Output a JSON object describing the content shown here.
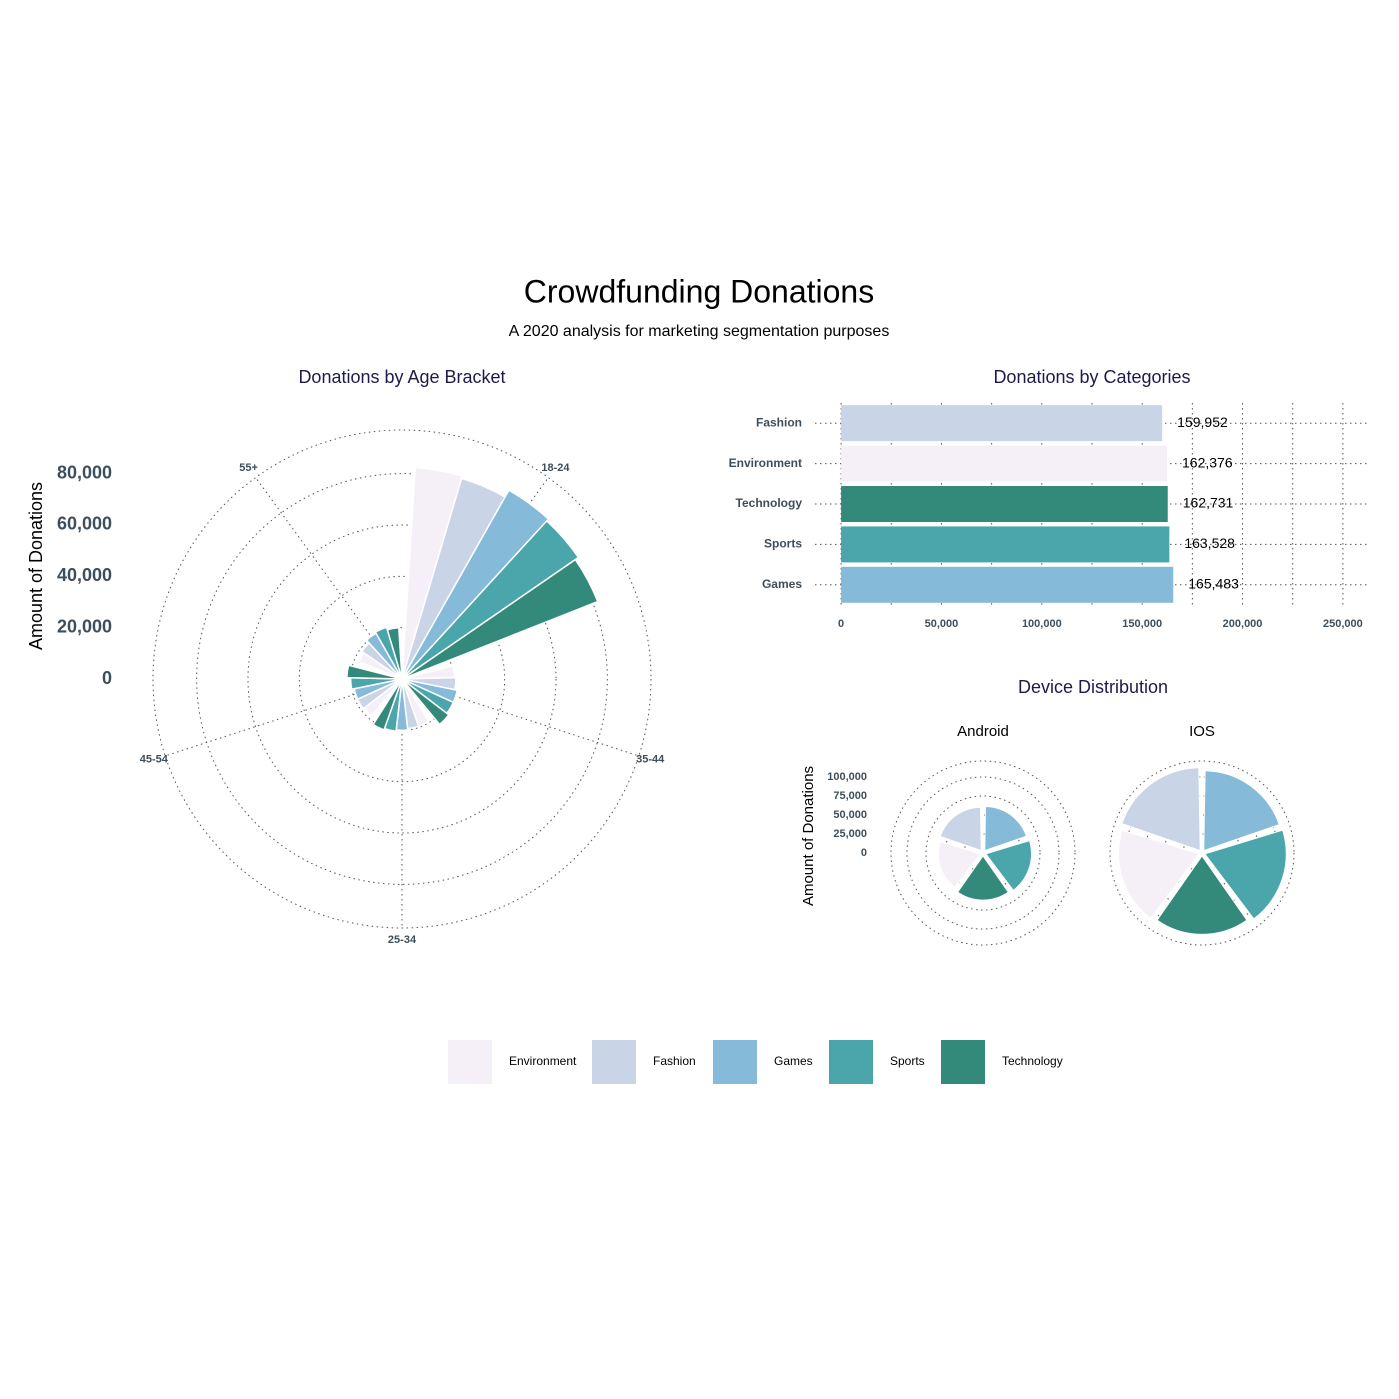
{
  "title": "Crowdfunding Donations",
  "subtitle": "A 2020 analysis for marketing segmentation purposes",
  "chart_data": [
    {
      "type": "polar-bar",
      "title": "Donations by Age Bracket",
      "y_label": "Amount of Donations",
      "categories": [
        "18-24",
        "35-44",
        "25-34",
        "45-54",
        "55+"
      ],
      "series": [
        {
          "name": "Environment",
          "color": "#f5f0f7",
          "values": [
            82500,
            20500,
            19500,
            18500,
            18000
          ]
        },
        {
          "name": "Fashion",
          "color": "#c9d4e6",
          "values": [
            81500,
            21000,
            19500,
            19000,
            19000
          ]
        },
        {
          "name": "Games",
          "color": "#86bad9",
          "values": [
            84500,
            22000,
            20000,
            19000,
            20500
          ]
        },
        {
          "name": "Sports",
          "color": "#4aa6ab",
          "values": [
            83500,
            22000,
            20500,
            20000,
            21000
          ]
        },
        {
          "name": "Technology",
          "color": "#33897a",
          "values": [
            82000,
            23000,
            21000,
            21500,
            20000
          ]
        }
      ],
      "ylim": [
        0,
        97000
      ],
      "yticks": [
        0,
        {
          "value": 20000,
          "label": "20,000"
        },
        {
          "value": 40000,
          "label": "40,000"
        },
        {
          "value": 60000,
          "label": "60,000"
        },
        {
          "value": 80000,
          "label": "80,000"
        }
      ],
      "grid": true
    },
    {
      "type": "hbar",
      "title": "Donations by Categories",
      "categories": [
        "Fashion",
        "Environment",
        "Technology",
        "Sports",
        "Games"
      ],
      "values": [
        159952,
        162376,
        162731,
        163528,
        165483
      ],
      "value_labels": [
        "159,952",
        "162,376",
        "162,731",
        "163,528",
        "165,483"
      ],
      "colors": [
        "#c9d4e6",
        "#f5f0f7",
        "#33897a",
        "#4aa6ab",
        "#86bad9"
      ],
      "xlim": [
        -13000,
        262500
      ],
      "xticks": [
        0,
        {
          "value": 50000,
          "label": "50,000"
        },
        {
          "value": 100000,
          "label": "100,000"
        },
        {
          "value": 150000,
          "label": "150,000"
        },
        {
          "value": 200000,
          "label": "200,000"
        },
        {
          "value": 250000,
          "label": "250,000"
        }
      ],
      "grid": true
    },
    {
      "type": "coxcomb",
      "title": "Device Distribution",
      "y_label": "Amount of Donations",
      "colors": [
        "#86bad9",
        "#4aa6ab",
        "#33897a",
        "#f5f0f7",
        "#c9d4e6"
      ],
      "facets": [
        {
          "name": "Android",
          "values": [
            58000,
            60000,
            58000,
            55000,
            57000
          ]
        },
        {
          "name": "IOS",
          "values": [
            105000,
            107000,
            103000,
            106000,
            109000
          ]
        }
      ],
      "ylim": [
        0,
        121000
      ],
      "yticks": [
        0,
        {
          "value": 25000,
          "label": "25,000"
        },
        {
          "value": 50000,
          "label": "50,000"
        },
        {
          "value": 75000,
          "label": "75,000"
        },
        {
          "value": 100000,
          "label": "100,000"
        }
      ],
      "grid": true
    }
  ]
}
